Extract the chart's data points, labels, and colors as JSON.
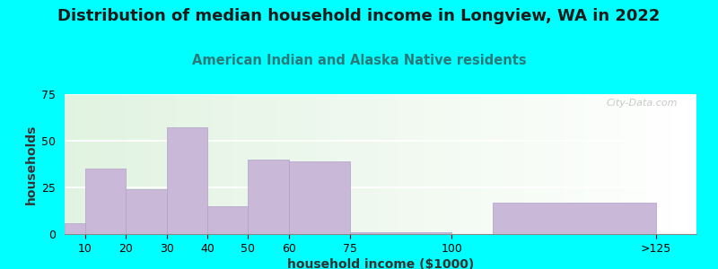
{
  "title": "Distribution of median household income in Longview, WA in 2022",
  "subtitle": "American Indian and Alaska Native residents",
  "xlabel": "household income ($1000)",
  "ylabel": "households",
  "background_outer": "#00FFFF",
  "bar_color": "#C9B8D8",
  "bar_edge_color": "#B0A0C8",
  "bar_left_edges": [
    5,
    10,
    20,
    30,
    40,
    50,
    60,
    75,
    110
  ],
  "bar_widths": [
    5,
    10,
    10,
    10,
    10,
    10,
    15,
    25,
    40
  ],
  "values": [
    6,
    35,
    24,
    57,
    15,
    40,
    39,
    1,
    17
  ],
  "xtick_positions": [
    10,
    20,
    30,
    40,
    50,
    60,
    75,
    100,
    150
  ],
  "xtick_labels": [
    "10",
    "20",
    "30",
    "40",
    "50",
    "60",
    "75",
    "100",
    ">125"
  ],
  "xlim": [
    5,
    160
  ],
  "ylim": [
    0,
    75
  ],
  "yticks": [
    0,
    25,
    50,
    75
  ],
  "watermark": "City-Data.com",
  "title_fontsize": 13,
  "subtitle_fontsize": 10.5,
  "subtitle_color": "#2A7A7A",
  "axis_label_fontsize": 10,
  "tick_fontsize": 9
}
